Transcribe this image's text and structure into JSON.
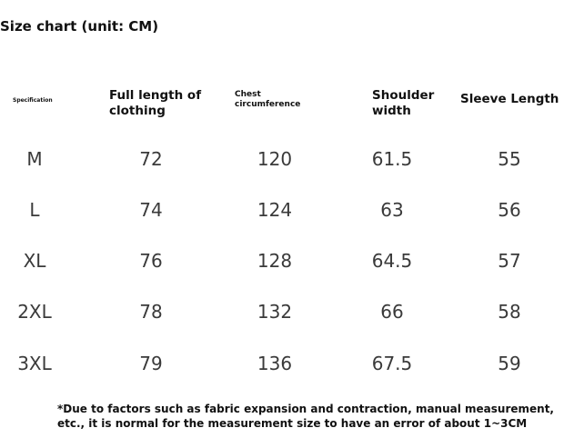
{
  "title": "Size chart (unit: CM)",
  "headers": {
    "spec": "Specification",
    "full_length": "Full length of clothing",
    "chest": "Chest circumference",
    "shoulder": "Shoulder width",
    "sleeve": "Sleeve Length"
  },
  "rows": [
    {
      "size": "M",
      "length": "72",
      "chest": "120",
      "shoulder": "61.5",
      "sleeve": "55"
    },
    {
      "size": "L",
      "length": "74",
      "chest": "124",
      "shoulder": "63",
      "sleeve": "56"
    },
    {
      "size": "XL",
      "length": "76",
      "chest": "128",
      "shoulder": "64.5",
      "sleeve": "57"
    },
    {
      "size": "2XL",
      "length": "78",
      "chest": "132",
      "shoulder": "66",
      "sleeve": "58"
    },
    {
      "size": "3XL",
      "length": "79",
      "chest": "136",
      "shoulder": "67.5",
      "sleeve": "59"
    }
  ],
  "note_line1": "*Due to factors such as fabric expansion and contraction, manual measurement,",
  "note_line2": "etc., it is normal for the measurement size to have an error of about 1~3CM"
}
